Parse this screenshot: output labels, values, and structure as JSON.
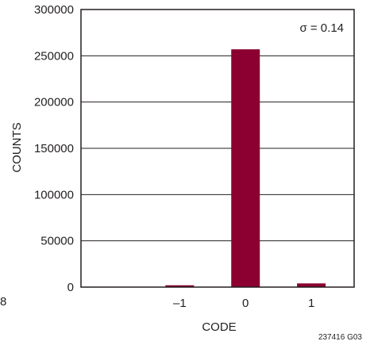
{
  "chart_data": {
    "type": "bar",
    "categories": [
      "–1",
      "0",
      "1"
    ],
    "values": [
      2000,
      257000,
      4000
    ],
    "xlabel": "CODE",
    "ylabel": "COUNTS",
    "ylim": [
      0,
      300000
    ],
    "yticks": [
      "0",
      "50000",
      "100000",
      "150000",
      "200000",
      "250000",
      "300000"
    ],
    "y_tick_values": [
      0,
      50000,
      100000,
      150000,
      200000,
      250000,
      300000
    ],
    "x_positions": [
      -1,
      0,
      1
    ],
    "xlim": [
      -2.5,
      1.65
    ],
    "grid": true,
    "bar_color": "#8b0030",
    "annotation": "σ = 0.14",
    "figure_id": "237416 G03",
    "stray_mark": "8"
  }
}
